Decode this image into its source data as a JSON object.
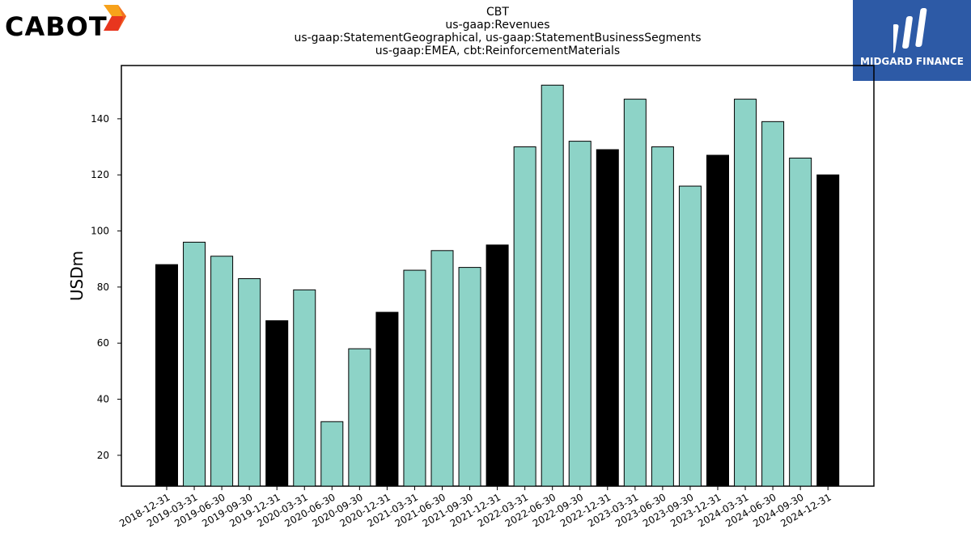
{
  "logos": {
    "left_text": "CABOT",
    "right_text": "MIDGARD FINANCE"
  },
  "titles": {
    "line1": "CBT",
    "line2": "us-gaap:Revenues",
    "line3": "us-gaap:StatementGeographical, us-gaap:StatementBusinessSegments",
    "line4": "us-gaap:EMEA, cbt:ReinforcementMaterials"
  },
  "chart_data": {
    "type": "bar",
    "ylabel": "USDm",
    "xlabel": "",
    "ylim": [
      9,
      159
    ],
    "yticks": [
      20,
      40,
      60,
      80,
      100,
      120,
      140
    ],
    "colors": {
      "quarter": "#8dd3c7",
      "year_end": "#000000"
    },
    "categories": [
      "2018-12-31",
      "2019-03-31",
      "2019-06-30",
      "2019-09-30",
      "2019-12-31",
      "2020-03-31",
      "2020-06-30",
      "2020-09-30",
      "2020-12-31",
      "2021-03-31",
      "2021-06-30",
      "2021-09-30",
      "2021-12-31",
      "2022-03-31",
      "2022-06-30",
      "2022-09-30",
      "2022-12-31",
      "2023-03-31",
      "2023-06-30",
      "2023-09-30",
      "2023-12-31",
      "2024-03-31",
      "2024-06-30",
      "2024-09-30",
      "2024-12-31"
    ],
    "values": [
      88,
      96,
      91,
      83,
      68,
      79,
      32,
      58,
      71,
      86,
      93,
      87,
      95,
      130,
      152,
      132,
      129,
      147,
      130,
      116,
      127,
      147,
      139,
      126,
      120
    ],
    "year_end_flags": [
      true,
      false,
      false,
      false,
      true,
      false,
      false,
      false,
      true,
      false,
      false,
      false,
      true,
      false,
      false,
      false,
      true,
      false,
      false,
      false,
      true,
      false,
      false,
      false,
      true
    ]
  }
}
